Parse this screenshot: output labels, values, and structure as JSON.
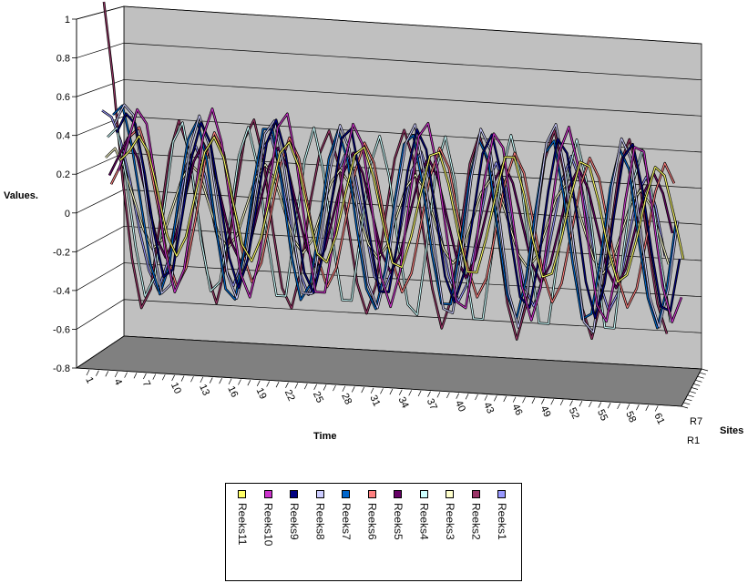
{
  "chart_data": {
    "type": "line",
    "chart_style": "3d",
    "ylabel": "Values.",
    "xlabel": "Time",
    "zlabel": "Sites",
    "ylim": [
      -0.8,
      1
    ],
    "y_ticks": [
      "1",
      "0.8",
      "0.6",
      "0.4",
      "0.2",
      "0",
      "-0.2",
      "-0.4",
      "-0.6",
      "-0.8"
    ],
    "y_tick_values": [
      1,
      0.8,
      0.6,
      0.4,
      0.2,
      0,
      -0.2,
      -0.4,
      -0.6,
      -0.8
    ],
    "x_tick_labels": [
      "1",
      "4",
      "7",
      "10",
      "13",
      "16",
      "19",
      "22",
      "25",
      "28",
      "31",
      "34",
      "37",
      "40",
      "43",
      "46",
      "49",
      "52",
      "55",
      "58",
      "61"
    ],
    "z_tick_labels": [
      "R1",
      "R7"
    ],
    "grid": true,
    "legend_position": "bottom",
    "colors": {
      "wall": "#c0c0c0",
      "floor": "#808080",
      "gridline": "#000000"
    },
    "series": [
      {
        "name": "Reeks1",
        "color": "#9999ff",
        "values": [
          0.45,
          0.42,
          0.3,
          0.1,
          -0.15,
          -0.35,
          -0.45,
          -0.3,
          -0.05,
          0.2,
          0.3,
          0.15,
          -0.1,
          -0.3,
          -0.4,
          -0.25,
          0.05,
          0.3,
          0.38,
          0.2,
          -0.05,
          -0.3,
          -0.42,
          -0.3,
          -0.05,
          0.2,
          0.32,
          0.2,
          -0.05,
          -0.3,
          -0.38,
          -0.25,
          0.0,
          0.25,
          0.35,
          0.2,
          -0.05,
          -0.28,
          -0.4,
          -0.3,
          -0.05,
          0.2,
          0.32,
          0.2,
          -0.05,
          -0.3,
          -0.4,
          -0.25,
          0.0,
          0.25,
          0.38,
          0.25,
          0.0,
          -0.25,
          -0.4,
          -0.3,
          -0.05,
          0.2,
          0.3,
          0.15,
          -0.1
        ]
      },
      {
        "name": "Reeks2",
        "color": "#993366",
        "values": [
          1.0,
          0.6,
          0.1,
          -0.3,
          -0.55,
          -0.45,
          -0.1,
          0.25,
          0.42,
          0.28,
          -0.05,
          -0.35,
          -0.5,
          -0.3,
          0.05,
          0.35,
          0.45,
          0.25,
          -0.1,
          -0.4,
          -0.5,
          -0.3,
          0.05,
          0.3,
          0.42,
          0.25,
          -0.05,
          -0.35,
          -0.5,
          -0.35,
          0.0,
          0.3,
          0.45,
          0.3,
          -0.05,
          -0.35,
          -0.55,
          -0.4,
          -0.05,
          0.3,
          0.45,
          0.3,
          -0.05,
          -0.4,
          -0.58,
          -0.4,
          0.0,
          0.35,
          0.5,
          0.3,
          -0.05,
          -0.4,
          -0.55,
          -0.35,
          0.0,
          0.35,
          0.48,
          0.3,
          -0.05,
          -0.35,
          -0.5
        ]
      },
      {
        "name": "Reeks3",
        "color": "#ffffcc",
        "values": [
          0.2,
          0.25,
          0.15,
          0.0,
          -0.15,
          -0.25,
          -0.2,
          -0.05,
          0.1,
          0.2,
          0.15,
          0.0,
          -0.15,
          -0.22,
          -0.15,
          0.0,
          0.15,
          0.22,
          0.15,
          0.0,
          -0.15,
          -0.22,
          -0.15,
          0.0,
          0.15,
          0.22,
          0.15,
          0.0,
          -0.15,
          -0.22,
          -0.15,
          0.0,
          0.15,
          0.22,
          0.15,
          0.0,
          -0.15,
          -0.22,
          -0.15,
          0.0,
          0.15,
          0.22,
          0.15,
          0.0,
          -0.15,
          -0.22,
          -0.15,
          0.0,
          0.15,
          0.22,
          0.15,
          0.0,
          -0.15,
          -0.22,
          -0.15,
          0.0,
          0.15,
          0.22,
          0.15,
          0.0,
          -0.15
        ]
      },
      {
        "name": "Reeks4",
        "color": "#ccffff",
        "values": [
          0.3,
          0.35,
          0.1,
          -0.25,
          -0.5,
          -0.4,
          -0.05,
          0.3,
          0.4,
          0.15,
          -0.2,
          -0.45,
          -0.4,
          -0.1,
          0.25,
          0.4,
          0.2,
          -0.15,
          -0.45,
          -0.45,
          -0.1,
          0.25,
          0.42,
          0.2,
          -0.15,
          -0.45,
          -0.45,
          -0.1,
          0.25,
          0.4,
          0.2,
          -0.15,
          -0.45,
          -0.5,
          -0.15,
          0.25,
          0.42,
          0.2,
          -0.2,
          -0.5,
          -0.5,
          -0.15,
          0.25,
          0.45,
          0.25,
          -0.15,
          -0.5,
          -0.5,
          -0.15,
          0.25,
          0.45,
          0.25,
          -0.15,
          -0.5,
          -0.5,
          -0.1,
          0.25,
          0.42,
          0.2,
          -0.15,
          -0.45
        ]
      },
      {
        "name": "Reeks5",
        "color": "#660066",
        "values": [
          0.1,
          0.2,
          0.3,
          0.2,
          0.0,
          -0.2,
          -0.3,
          -0.2,
          0.0,
          0.2,
          0.3,
          0.2,
          0.0,
          -0.2,
          -0.3,
          -0.2,
          0.0,
          0.2,
          0.3,
          0.2,
          0.0,
          -0.2,
          -0.3,
          -0.2,
          0.0,
          0.2,
          0.3,
          0.2,
          0.0,
          -0.2,
          -0.3,
          -0.2,
          0.0,
          0.2,
          0.3,
          0.2,
          0.0,
          -0.2,
          -0.3,
          -0.2,
          0.0,
          0.2,
          0.3,
          0.2,
          0.0,
          -0.2,
          -0.3,
          -0.2,
          0.0,
          0.2,
          0.3,
          0.2,
          0.0,
          -0.2,
          -0.3,
          -0.2,
          0.0,
          0.2,
          0.3,
          0.2,
          0.0
        ]
      },
      {
        "name": "Reeks6",
        "color": "#ff8080",
        "values": [
          0.05,
          0.15,
          0.3,
          0.35,
          0.2,
          -0.05,
          -0.3,
          -0.45,
          -0.35,
          -0.1,
          0.2,
          0.35,
          0.25,
          0.0,
          -0.25,
          -0.4,
          -0.3,
          -0.05,
          0.2,
          0.35,
          0.25,
          0.0,
          -0.25,
          -0.4,
          -0.3,
          -0.05,
          0.2,
          0.35,
          0.25,
          0.0,
          -0.25,
          -0.4,
          -0.3,
          -0.05,
          0.2,
          0.35,
          0.25,
          0.0,
          -0.25,
          -0.4,
          -0.3,
          -0.05,
          0.2,
          0.35,
          0.25,
          0.0,
          -0.25,
          -0.4,
          -0.3,
          -0.05,
          0.2,
          0.35,
          0.25,
          0.0,
          -0.25,
          -0.4,
          -0.3,
          -0.05,
          0.2,
          0.35,
          0.25
        ]
      },
      {
        "name": "Reeks7",
        "color": "#0066cc",
        "values": [
          0.4,
          0.45,
          0.25,
          -0.05,
          -0.35,
          -0.5,
          -0.35,
          0.0,
          0.3,
          0.4,
          0.2,
          -0.15,
          -0.45,
          -0.5,
          -0.25,
          0.1,
          0.38,
          0.38,
          0.1,
          -0.25,
          -0.48,
          -0.4,
          -0.1,
          0.25,
          0.4,
          0.25,
          -0.1,
          -0.4,
          -0.5,
          -0.3,
          0.05,
          0.35,
          0.4,
          0.15,
          -0.2,
          -0.45,
          -0.45,
          -0.15,
          0.2,
          0.4,
          0.3,
          -0.05,
          -0.38,
          -0.5,
          -0.3,
          0.05,
          0.35,
          0.42,
          0.15,
          -0.2,
          -0.48,
          -0.45,
          -0.15,
          0.2,
          0.4,
          0.3,
          -0.05,
          -0.35,
          -0.5,
          -0.3,
          0.05
        ]
      },
      {
        "name": "Reeks8",
        "color": "#ccccff",
        "values": [
          0.35,
          0.45,
          0.4,
          0.1,
          -0.25,
          -0.5,
          -0.45,
          -0.1,
          0.25,
          0.42,
          0.28,
          -0.05,
          -0.38,
          -0.5,
          -0.3,
          0.05,
          0.35,
          0.42,
          0.2,
          -0.15,
          -0.45,
          -0.45,
          -0.15,
          0.2,
          0.42,
          0.3,
          -0.05,
          -0.38,
          -0.5,
          -0.3,
          0.05,
          0.35,
          0.45,
          0.2,
          -0.15,
          -0.48,
          -0.5,
          -0.2,
          0.2,
          0.45,
          0.35,
          0.0,
          -0.38,
          -0.55,
          -0.35,
          0.05,
          0.4,
          0.5,
          0.25,
          -0.15,
          -0.5,
          -0.55,
          -0.2,
          0.2,
          0.45,
          0.35,
          0.0,
          -0.35,
          -0.5,
          -0.3,
          0.05
        ]
      },
      {
        "name": "Reeks9",
        "color": "#000080",
        "values": [
          0.3,
          0.4,
          0.35,
          0.1,
          -0.2,
          -0.42,
          -0.38,
          -0.1,
          0.2,
          0.38,
          0.28,
          0.0,
          -0.3,
          -0.45,
          -0.3,
          0.0,
          0.3,
          0.42,
          0.25,
          -0.05,
          -0.35,
          -0.45,
          -0.25,
          0.05,
          0.35,
          0.4,
          0.15,
          -0.15,
          -0.42,
          -0.42,
          -0.15,
          0.2,
          0.42,
          0.32,
          0.0,
          -0.32,
          -0.45,
          -0.3,
          0.0,
          0.32,
          0.42,
          0.22,
          -0.1,
          -0.4,
          -0.45,
          -0.2,
          0.15,
          0.42,
          0.35,
          0.05,
          -0.3,
          -0.48,
          -0.3,
          0.05,
          0.35,
          0.42,
          0.2,
          -0.12,
          -0.4,
          -0.42,
          -0.15
        ]
      },
      {
        "name": "Reeks10",
        "color": "#cc33cc",
        "values": [
          0.1,
          0.25,
          0.42,
          0.35,
          0.05,
          -0.3,
          -0.5,
          -0.38,
          -0.05,
          0.3,
          0.45,
          0.28,
          -0.05,
          -0.38,
          -0.5,
          -0.3,
          0.05,
          0.38,
          0.45,
          0.2,
          -0.15,
          -0.45,
          -0.45,
          -0.15,
          0.2,
          0.42,
          0.32,
          0.0,
          -0.35,
          -0.5,
          -0.32,
          0.05,
          0.38,
          0.45,
          0.22,
          -0.12,
          -0.45,
          -0.48,
          -0.2,
          0.18,
          0.42,
          0.35,
          0.0,
          -0.35,
          -0.52,
          -0.35,
          0.0,
          0.35,
          0.48,
          0.28,
          -0.08,
          -0.42,
          -0.5,
          -0.25,
          0.12,
          0.4,
          0.38,
          0.05,
          -0.3,
          -0.48,
          -0.35
        ]
      },
      {
        "name": "Reeks11",
        "color": "#ffff66",
        "values": [
          0.15,
          0.2,
          0.28,
          0.2,
          0.0,
          -0.22,
          -0.32,
          -0.22,
          0.0,
          0.22,
          0.3,
          0.2,
          -0.02,
          -0.24,
          -0.32,
          -0.2,
          0.02,
          0.24,
          0.3,
          0.18,
          -0.05,
          -0.26,
          -0.3,
          -0.16,
          0.06,
          0.26,
          0.3,
          0.15,
          -0.08,
          -0.28,
          -0.3,
          -0.14,
          0.08,
          0.28,
          0.3,
          0.14,
          -0.1,
          -0.3,
          -0.3,
          -0.12,
          0.1,
          0.3,
          0.3,
          0.12,
          -0.12,
          -0.3,
          -0.28,
          -0.1,
          0.12,
          0.3,
          0.28,
          0.1,
          -0.14,
          -0.3,
          -0.26,
          -0.08,
          0.14,
          0.3,
          0.26,
          0.06,
          -0.16
        ]
      }
    ]
  },
  "legend": {
    "items": [
      {
        "label": "Reeks11",
        "color": "#ffff66"
      },
      {
        "label": "Reeks10",
        "color": "#cc33cc"
      },
      {
        "label": "Reeks9",
        "color": "#000080"
      },
      {
        "label": "Reeks8",
        "color": "#ccccff"
      },
      {
        "label": "Reeks7",
        "color": "#0066cc"
      },
      {
        "label": "Reeks6",
        "color": "#ff8080"
      },
      {
        "label": "Reeks5",
        "color": "#660066"
      },
      {
        "label": "Reeks4",
        "color": "#ccffff"
      },
      {
        "label": "Reeks3",
        "color": "#ffffcc"
      },
      {
        "label": "Reeks2",
        "color": "#993366"
      },
      {
        "label": "Reeks1",
        "color": "#9999ff"
      }
    ]
  }
}
